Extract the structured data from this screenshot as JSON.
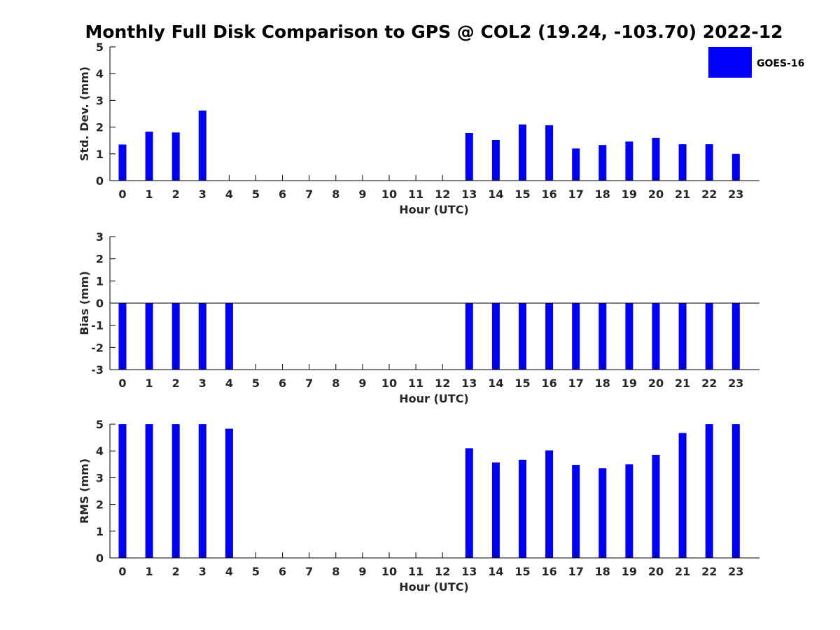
{
  "title": "Monthly Full Disk Comparison to GPS @ COL2 (19.24, -103.70) 2022-12",
  "legend": {
    "label": "GOES-16",
    "color": "#0000ff",
    "placement": "top-right"
  },
  "chart_data": [
    {
      "type": "bar",
      "name": "std_dev",
      "categories": [
        "0",
        "1",
        "2",
        "3",
        "4",
        "5",
        "6",
        "7",
        "8",
        "9",
        "10",
        "11",
        "12",
        "13",
        "14",
        "15",
        "16",
        "17",
        "18",
        "19",
        "20",
        "21",
        "22",
        "23"
      ],
      "series": [
        {
          "name": "GOES-16",
          "values": [
            1.35,
            1.83,
            1.8,
            2.62,
            null,
            null,
            null,
            null,
            null,
            null,
            null,
            null,
            null,
            1.78,
            1.52,
            2.1,
            2.07,
            1.2,
            1.33,
            1.46,
            1.6,
            1.36,
            1.36,
            1.0
          ]
        }
      ],
      "xlabel": "Hour (UTC)",
      "ylabel": "Std. Dev. (mm)",
      "ylim": [
        0,
        5
      ],
      "yticks": [
        0,
        1,
        2,
        3,
        4,
        5
      ],
      "grid": false
    },
    {
      "type": "bar",
      "name": "bias",
      "categories": [
        "0",
        "1",
        "2",
        "3",
        "4",
        "5",
        "6",
        "7",
        "8",
        "9",
        "10",
        "11",
        "12",
        "13",
        "14",
        "15",
        "16",
        "17",
        "18",
        "19",
        "20",
        "21",
        "22",
        "23"
      ],
      "series": [
        {
          "name": "GOES-16",
          "values": [
            -3,
            -3,
            -3,
            -3,
            -3,
            null,
            null,
            null,
            null,
            null,
            null,
            null,
            null,
            -3,
            -3,
            -3,
            -3,
            -3,
            -3,
            -3,
            -3,
            -3,
            -3,
            -3
          ]
        }
      ],
      "xlabel": "Hour (UTC)",
      "ylabel": "Bias (mm)",
      "ylim": [
        -3,
        3
      ],
      "yticks": [
        -3,
        -2,
        -1,
        0,
        1,
        2,
        3
      ],
      "zero_line": true,
      "grid": false
    },
    {
      "type": "bar",
      "name": "rms",
      "categories": [
        "0",
        "1",
        "2",
        "3",
        "4",
        "5",
        "6",
        "7",
        "8",
        "9",
        "10",
        "11",
        "12",
        "13",
        "14",
        "15",
        "16",
        "17",
        "18",
        "19",
        "20",
        "21",
        "22",
        "23"
      ],
      "series": [
        {
          "name": "GOES-16",
          "values": [
            5,
            5,
            5,
            5,
            4.83,
            null,
            null,
            null,
            null,
            null,
            null,
            null,
            null,
            4.1,
            3.57,
            3.67,
            4.02,
            3.48,
            3.35,
            3.5,
            3.85,
            4.67,
            5,
            5
          ]
        }
      ],
      "xlabel": "Hour (UTC)",
      "ylabel": "RMS (mm)",
      "ylim": [
        0,
        5
      ],
      "yticks": [
        0,
        1,
        2,
        3,
        4,
        5
      ],
      "grid": false
    }
  ]
}
